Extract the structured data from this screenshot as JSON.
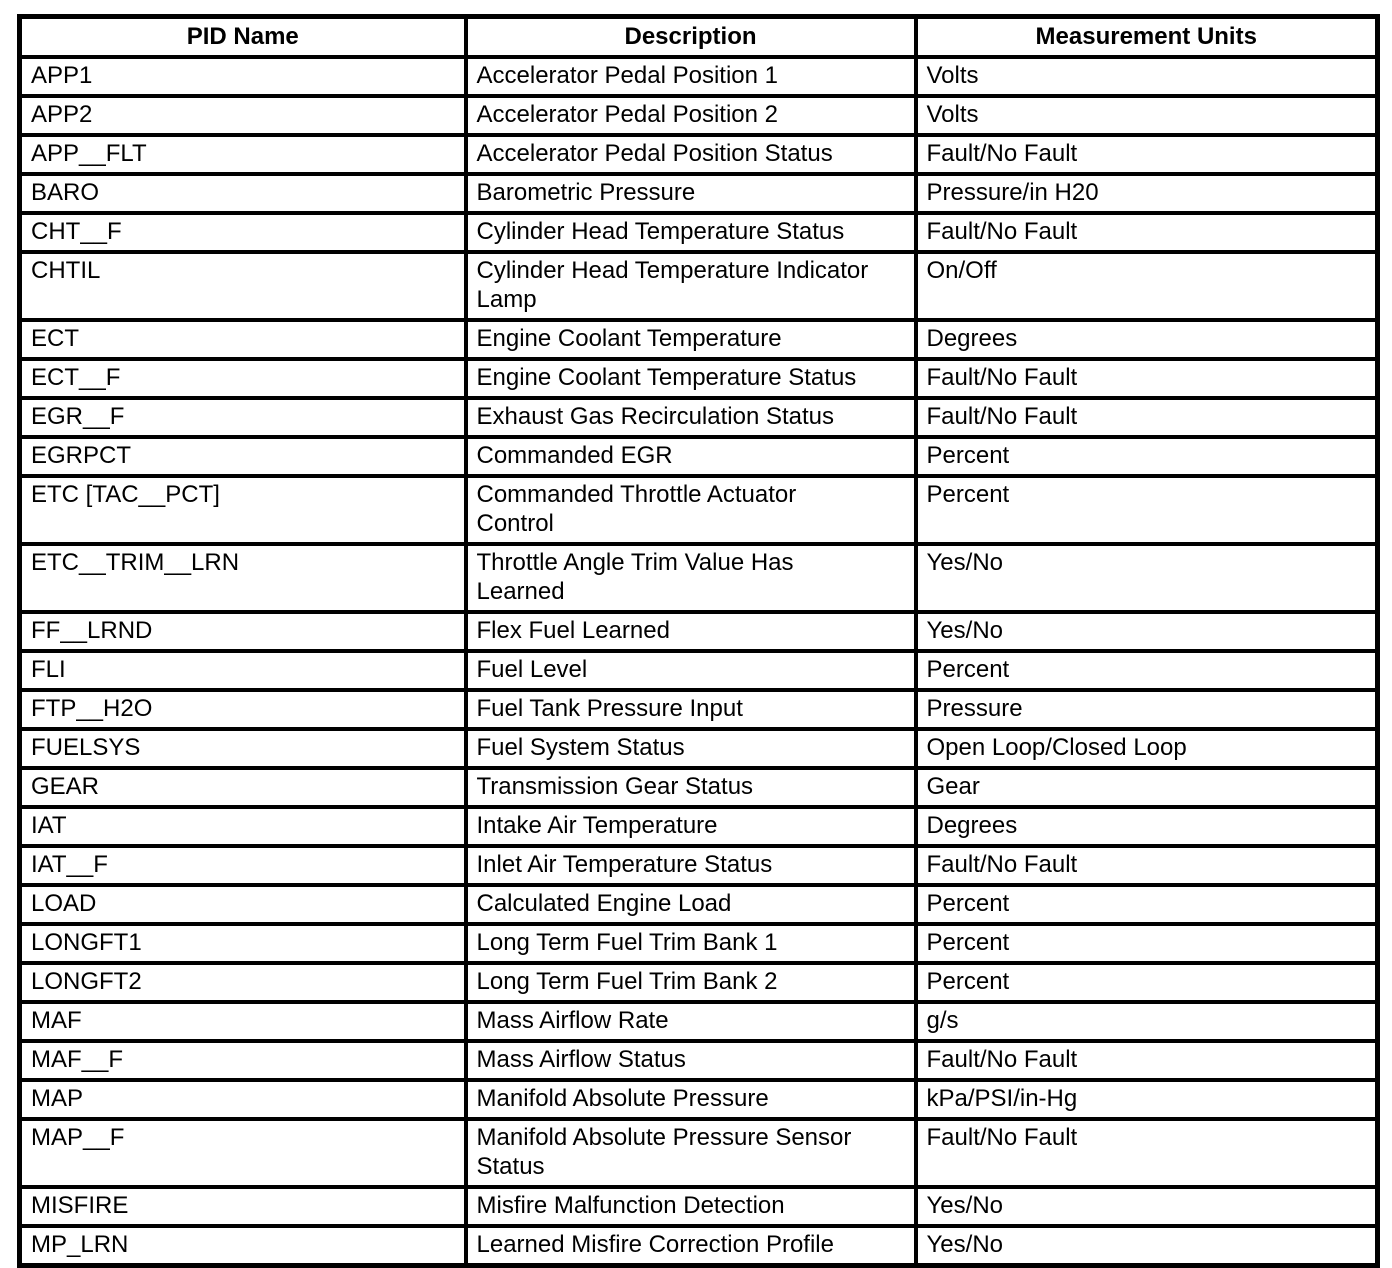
{
  "colors": {
    "background": "#ffffff",
    "border": "#000000",
    "text": "#000000"
  },
  "table": {
    "headers": [
      "PID Name",
      "Description",
      "Measurement Units"
    ],
    "rows": [
      {
        "pid": "APP1",
        "description": "Accelerator Pedal Position 1",
        "units": "Volts"
      },
      {
        "pid": "APP2",
        "description": "Accelerator Pedal Position 2",
        "units": "Volts"
      },
      {
        "pid": "APP__FLT",
        "description": "Accelerator Pedal Position Status",
        "units": "Fault/No Fault"
      },
      {
        "pid": "BARO",
        "description": "Barometric Pressure",
        "units": "Pressure/in H20"
      },
      {
        "pid": "CHT__F",
        "description": "Cylinder Head Temperature Status",
        "units": "Fault/No Fault"
      },
      {
        "pid": "CHTIL",
        "description": "Cylinder Head Temperature Indicator\nLamp",
        "units": "On/Off"
      },
      {
        "pid": "ECT",
        "description": "Engine Coolant Temperature",
        "units": "Degrees"
      },
      {
        "pid": "ECT__F",
        "description": "Engine Coolant Temperature Status",
        "units": "Fault/No Fault"
      },
      {
        "pid": "EGR__F",
        "description": "Exhaust Gas Recirculation Status",
        "units": "Fault/No Fault"
      },
      {
        "pid": "EGRPCT",
        "description": "Commanded EGR",
        "units": "Percent"
      },
      {
        "pid": "ETC [TAC__PCT]",
        "description": "Commanded Throttle Actuator\nControl",
        "units": "Percent"
      },
      {
        "pid": "ETC__TRIM__LRN",
        "description": "Throttle Angle Trim Value Has\nLearned",
        "units": "Yes/No"
      },
      {
        "pid": "FF__LRND",
        "description": "Flex Fuel Learned",
        "units": "Yes/No"
      },
      {
        "pid": "FLI",
        "description": "Fuel Level",
        "units": "Percent"
      },
      {
        "pid": "FTP__H2O",
        "description": "Fuel Tank Pressure Input",
        "units": "Pressure"
      },
      {
        "pid": "FUELSYS",
        "description": "Fuel System Status",
        "units": "Open Loop/Closed Loop"
      },
      {
        "pid": "GEAR",
        "description": "Transmission Gear Status",
        "units": "Gear"
      },
      {
        "pid": "IAT",
        "description": "Intake Air Temperature",
        "units": "Degrees"
      },
      {
        "pid": "IAT__F",
        "description": "Inlet Air Temperature Status",
        "units": "Fault/No Fault"
      },
      {
        "pid": "LOAD",
        "description": "Calculated Engine Load",
        "units": "Percent"
      },
      {
        "pid": "LONGFT1",
        "description": "Long Term Fuel Trim Bank 1",
        "units": "Percent"
      },
      {
        "pid": "LONGFT2",
        "description": "Long Term Fuel Trim Bank 2",
        "units": "Percent"
      },
      {
        "pid": "MAF",
        "description": "Mass Airflow Rate",
        "units": "g/s"
      },
      {
        "pid": "MAF__F",
        "description": "Mass Airflow Status",
        "units": "Fault/No Fault"
      },
      {
        "pid": "MAP",
        "description": "Manifold Absolute Pressure",
        "units": "kPa/PSI/in-Hg"
      },
      {
        "pid": "MAP__F",
        "description": "Manifold Absolute Pressure Sensor\nStatus",
        "units": "Fault/No Fault"
      },
      {
        "pid": "MISFIRE",
        "description": "Misfire Malfunction Detection",
        "units": "Yes/No"
      },
      {
        "pid": "MP_LRN",
        "description": "Learned Misfire Correction Profile",
        "units": "Yes/No"
      }
    ]
  }
}
